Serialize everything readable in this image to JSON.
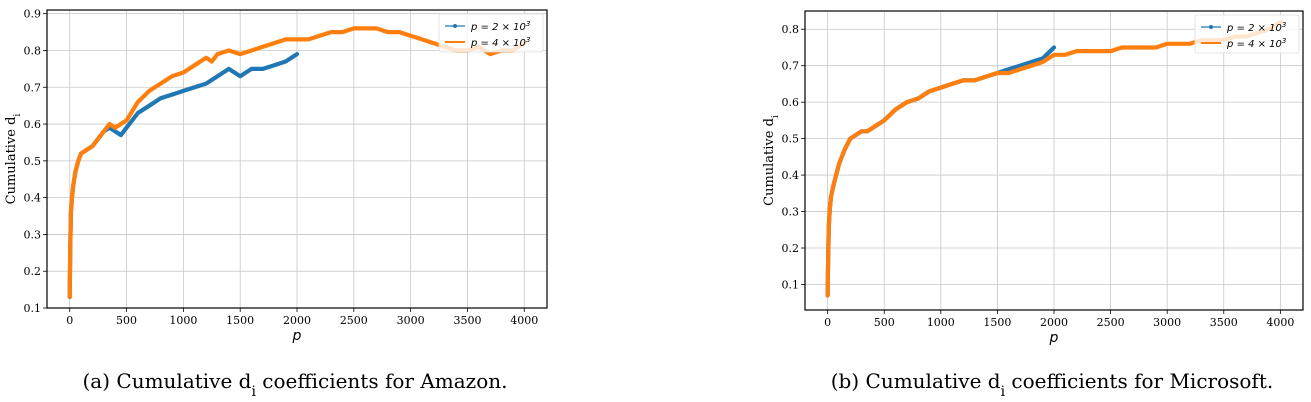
{
  "chart_data": [
    {
      "type": "line",
      "title": "",
      "xlabel": "p",
      "ylabel": "Cumulative d_i",
      "xlim": [
        -200,
        4200
      ],
      "ylim": [
        0.1,
        0.91
      ],
      "xticks": [
        "0",
        "500",
        "1000",
        "1500",
        "2000",
        "2500",
        "3000",
        "3500",
        "4000"
      ],
      "yticks": [
        "0.1",
        "0.2",
        "0.3",
        "0.4",
        "0.5",
        "0.6",
        "0.7",
        "0.8",
        "0.9"
      ],
      "grid": true,
      "legend": "top-right",
      "caption": "(a) Cumulative d_i coefficients for Amazon.",
      "series": [
        {
          "name": "p = 2 × 10^3",
          "color": "#1f77b4",
          "x": [
            0,
            5,
            10,
            20,
            30,
            50,
            75,
            100,
            150,
            200,
            250,
            300,
            350,
            400,
            450,
            500,
            600,
            700,
            800,
            900,
            1000,
            1100,
            1200,
            1300,
            1400,
            1450,
            1500,
            1550,
            1600,
            1700,
            1800,
            1900,
            2000
          ],
          "y": [
            0.13,
            0.27,
            0.36,
            0.4,
            0.43,
            0.47,
            0.5,
            0.52,
            0.53,
            0.54,
            0.56,
            0.58,
            0.59,
            0.58,
            0.57,
            0.59,
            0.63,
            0.65,
            0.67,
            0.68,
            0.69,
            0.7,
            0.71,
            0.73,
            0.75,
            0.74,
            0.73,
            0.74,
            0.75,
            0.75,
            0.76,
            0.77,
            0.79
          ]
        },
        {
          "name": "p = 4 × 10^3",
          "color": "#ff7f0e",
          "x": [
            0,
            5,
            10,
            20,
            30,
            50,
            75,
            100,
            150,
            200,
            250,
            300,
            350,
            400,
            500,
            600,
            700,
            800,
            900,
            1000,
            1100,
            1200,
            1250,
            1300,
            1400,
            1500,
            1600,
            1700,
            1800,
            1900,
            2000,
            2100,
            2200,
            2300,
            2400,
            2500,
            2600,
            2700,
            2800,
            2900,
            3000,
            3100,
            3200,
            3300,
            3400,
            3500,
            3600,
            3700,
            3800,
            3900,
            4000
          ],
          "y": [
            0.13,
            0.27,
            0.36,
            0.4,
            0.43,
            0.47,
            0.5,
            0.52,
            0.53,
            0.54,
            0.56,
            0.58,
            0.6,
            0.59,
            0.61,
            0.66,
            0.69,
            0.71,
            0.73,
            0.74,
            0.76,
            0.78,
            0.77,
            0.79,
            0.8,
            0.79,
            0.8,
            0.81,
            0.82,
            0.83,
            0.83,
            0.83,
            0.84,
            0.85,
            0.85,
            0.86,
            0.86,
            0.86,
            0.85,
            0.85,
            0.84,
            0.83,
            0.82,
            0.81,
            0.8,
            0.8,
            0.81,
            0.79,
            0.8,
            0.8,
            0.82
          ]
        }
      ]
    },
    {
      "type": "line",
      "title": "",
      "xlabel": "p",
      "ylabel": "Cumulative d_i",
      "xlim": [
        -200,
        4200
      ],
      "ylim": [
        0.03,
        0.85
      ],
      "xticks": [
        "0",
        "500",
        "1000",
        "1500",
        "2000",
        "2500",
        "3000",
        "3500",
        "4000"
      ],
      "yticks": [
        "0.1",
        "0.2",
        "0.3",
        "0.4",
        "0.5",
        "0.6",
        "0.7",
        "0.8"
      ],
      "grid": true,
      "legend": "top-right",
      "caption": "(b) Cumulative d_i coefficients for Microsoft.",
      "series": [
        {
          "name": "p = 2 × 10^3",
          "color": "#1f77b4",
          "x": [
            0,
            5,
            10,
            20,
            30,
            50,
            75,
            100,
            150,
            200,
            250,
            300,
            350,
            400,
            500,
            600,
            700,
            800,
            900,
            1000,
            1100,
            1200,
            1300,
            1400,
            1500,
            1600,
            1700,
            1800,
            1900,
            2000
          ],
          "y": [
            0.07,
            0.18,
            0.26,
            0.31,
            0.34,
            0.37,
            0.4,
            0.43,
            0.47,
            0.5,
            0.51,
            0.52,
            0.52,
            0.53,
            0.55,
            0.58,
            0.6,
            0.61,
            0.63,
            0.64,
            0.65,
            0.66,
            0.66,
            0.67,
            0.68,
            0.69,
            0.7,
            0.71,
            0.72,
            0.75
          ]
        },
        {
          "name": "p = 4 × 10^3",
          "color": "#ff7f0e",
          "x": [
            0,
            5,
            10,
            20,
            30,
            50,
            75,
            100,
            150,
            200,
            250,
            300,
            350,
            400,
            500,
            600,
            700,
            800,
            900,
            1000,
            1100,
            1200,
            1300,
            1400,
            1500,
            1600,
            1700,
            1800,
            1900,
            2000,
            2100,
            2200,
            2300,
            2400,
            2500,
            2600,
            2700,
            2800,
            2900,
            3000,
            3100,
            3200,
            3300,
            3400,
            3500,
            3600,
            3700,
            3800,
            3900,
            4000
          ],
          "y": [
            0.07,
            0.18,
            0.26,
            0.31,
            0.34,
            0.37,
            0.4,
            0.43,
            0.47,
            0.5,
            0.51,
            0.52,
            0.52,
            0.53,
            0.55,
            0.58,
            0.6,
            0.61,
            0.63,
            0.64,
            0.65,
            0.66,
            0.66,
            0.67,
            0.68,
            0.68,
            0.69,
            0.7,
            0.71,
            0.73,
            0.73,
            0.74,
            0.74,
            0.74,
            0.74,
            0.75,
            0.75,
            0.75,
            0.75,
            0.76,
            0.76,
            0.76,
            0.77,
            0.77,
            0.77,
            0.78,
            0.78,
            0.79,
            0.8,
            0.82
          ]
        }
      ]
    }
  ]
}
